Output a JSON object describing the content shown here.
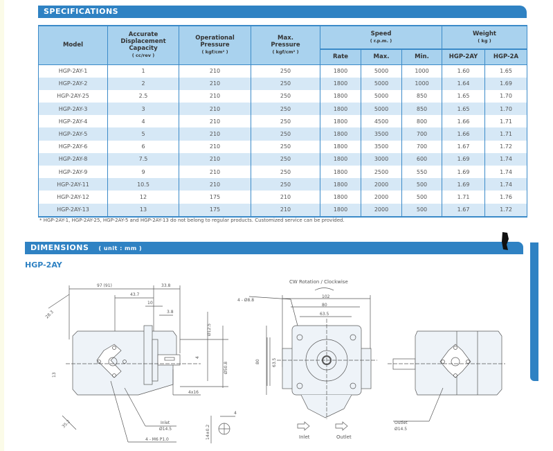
{
  "specifications": {
    "title": "SPECIFICATIONS",
    "headers": {
      "model": "Model",
      "displacement": [
        "Accurate",
        "Displacement",
        "Capacity"
      ],
      "displacement_unit": "( cc/rev )",
      "op_pressure": [
        "Operational",
        "Pressure"
      ],
      "op_pressure_unit": "( kgf/cm² )",
      "max_pressure": [
        "Max.",
        "Pressure"
      ],
      "max_pressure_unit": "( kgf/cm² )",
      "speed": "Speed",
      "speed_unit": "( r.p.m. )",
      "weight": "Weight",
      "weight_unit": "( kg )",
      "rate": "Rate",
      "max": "Max.",
      "min": "Min.",
      "w1": "HGP-2AY",
      "w2": "HGP-2A"
    },
    "rows": [
      [
        "HGP-2AY-1",
        "1",
        "210",
        "250",
        "1800",
        "5000",
        "1000",
        "1.60",
        "1.65"
      ],
      [
        "HGP-2AY-2",
        "2",
        "210",
        "250",
        "1800",
        "5000",
        "1000",
        "1.64",
        "1.69"
      ],
      [
        "HGP-2AY-25",
        "2.5",
        "210",
        "250",
        "1800",
        "5000",
        "850",
        "1.65",
        "1.70"
      ],
      [
        "HGP-2AY-3",
        "3",
        "210",
        "250",
        "1800",
        "5000",
        "850",
        "1.65",
        "1.70"
      ],
      [
        "HGP-2AY-4",
        "4",
        "210",
        "250",
        "1800",
        "4500",
        "800",
        "1.66",
        "1.71"
      ],
      [
        "HGP-2AY-5",
        "5",
        "210",
        "250",
        "1800",
        "3500",
        "700",
        "1.66",
        "1.71"
      ],
      [
        "HGP-2AY-6",
        "6",
        "210",
        "250",
        "1800",
        "3500",
        "700",
        "1.67",
        "1.72"
      ],
      [
        "HGP-2AY-8",
        "7.5",
        "210",
        "250",
        "1800",
        "3000",
        "600",
        "1.69",
        "1.74"
      ],
      [
        "HGP-2AY-9",
        "9",
        "210",
        "250",
        "1800",
        "2500",
        "550",
        "1.69",
        "1.74"
      ],
      [
        "HGP-2AY-11",
        "10.5",
        "210",
        "250",
        "1800",
        "2000",
        "500",
        "1.69",
        "1.74"
      ],
      [
        "HGP-2AY-12",
        "12",
        "175",
        "210",
        "1800",
        "2000",
        "500",
        "1.71",
        "1.76"
      ],
      [
        "HGP-2AY-13",
        "13",
        "175",
        "210",
        "1800",
        "2000",
        "500",
        "1.67",
        "1.72"
      ]
    ],
    "note": "* HGP-2AY-1, HGP-2AY-25, HGP-2AY-5 and HGP-2AY-13 do not belong to regular products. Customized service can be provided."
  },
  "dimensions": {
    "title": "DIMENSIONS",
    "unit": "( unit : mm )",
    "model": "HGP-2AY",
    "side": {
      "d1": "97 (91)",
      "d2": "43.7",
      "d3": "33.8",
      "d4": "10",
      "d5": "3.8",
      "d6": "28.3",
      "d7": "13",
      "d8": "4",
      "d9": "Ø12.5",
      "d10": "Ø50.8",
      "d11": "4x16",
      "d12": "35.2",
      "d13": "14±0.2",
      "d14": "4",
      "inlet": "Inlet",
      "inlet_d": "Ø14.5",
      "thread": "4 - M6 P1.0"
    },
    "front": {
      "rotation": "CW Rotation / Clockwise",
      "holes": "4 - Ø8.8",
      "w1": "102",
      "w2": "80",
      "w3": "63.5",
      "h1": "80",
      "h2": "63.5",
      "inlet": "Inlet",
      "outlet": "Outlet"
    },
    "rear": {
      "outlet": "Outlet",
      "outlet_d": "Ø14.5"
    }
  },
  "colors": {
    "accent": "#2f82c3",
    "header_fill": "#a9d2ee",
    "row_alt": "#d6e8f6"
  }
}
